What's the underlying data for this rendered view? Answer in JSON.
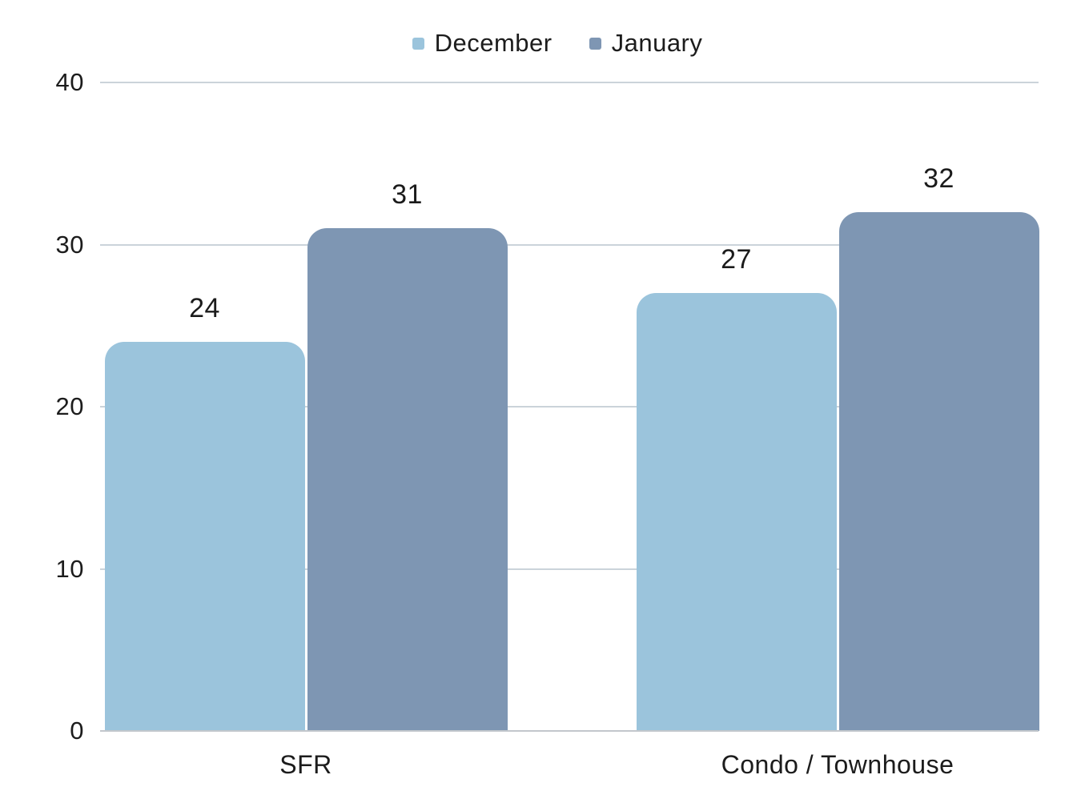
{
  "colors": {
    "december": "#9BC4DC",
    "january": "#7E96B3",
    "gridline": "#CBD3DA",
    "baseline": "#C2C7CC",
    "text": "#1C1C1C",
    "background": "#FFFFFF"
  },
  "chart_data": {
    "type": "bar",
    "categories": [
      "SFR",
      "Condo / Townhouse"
    ],
    "series": [
      {
        "name": "December",
        "color": "#9BC4DC",
        "values": [
          24,
          27
        ]
      },
      {
        "name": "January",
        "color": "#7E96B3",
        "values": [
          31,
          32
        ]
      }
    ],
    "title": "",
    "xlabel": "",
    "ylabel": "",
    "ylim": [
      0,
      40
    ],
    "yticks": [
      0,
      10,
      20,
      30,
      40
    ],
    "grid": true,
    "legend_position": "top",
    "data_labels": [
      [
        24,
        27
      ],
      [
        31,
        32
      ]
    ]
  }
}
